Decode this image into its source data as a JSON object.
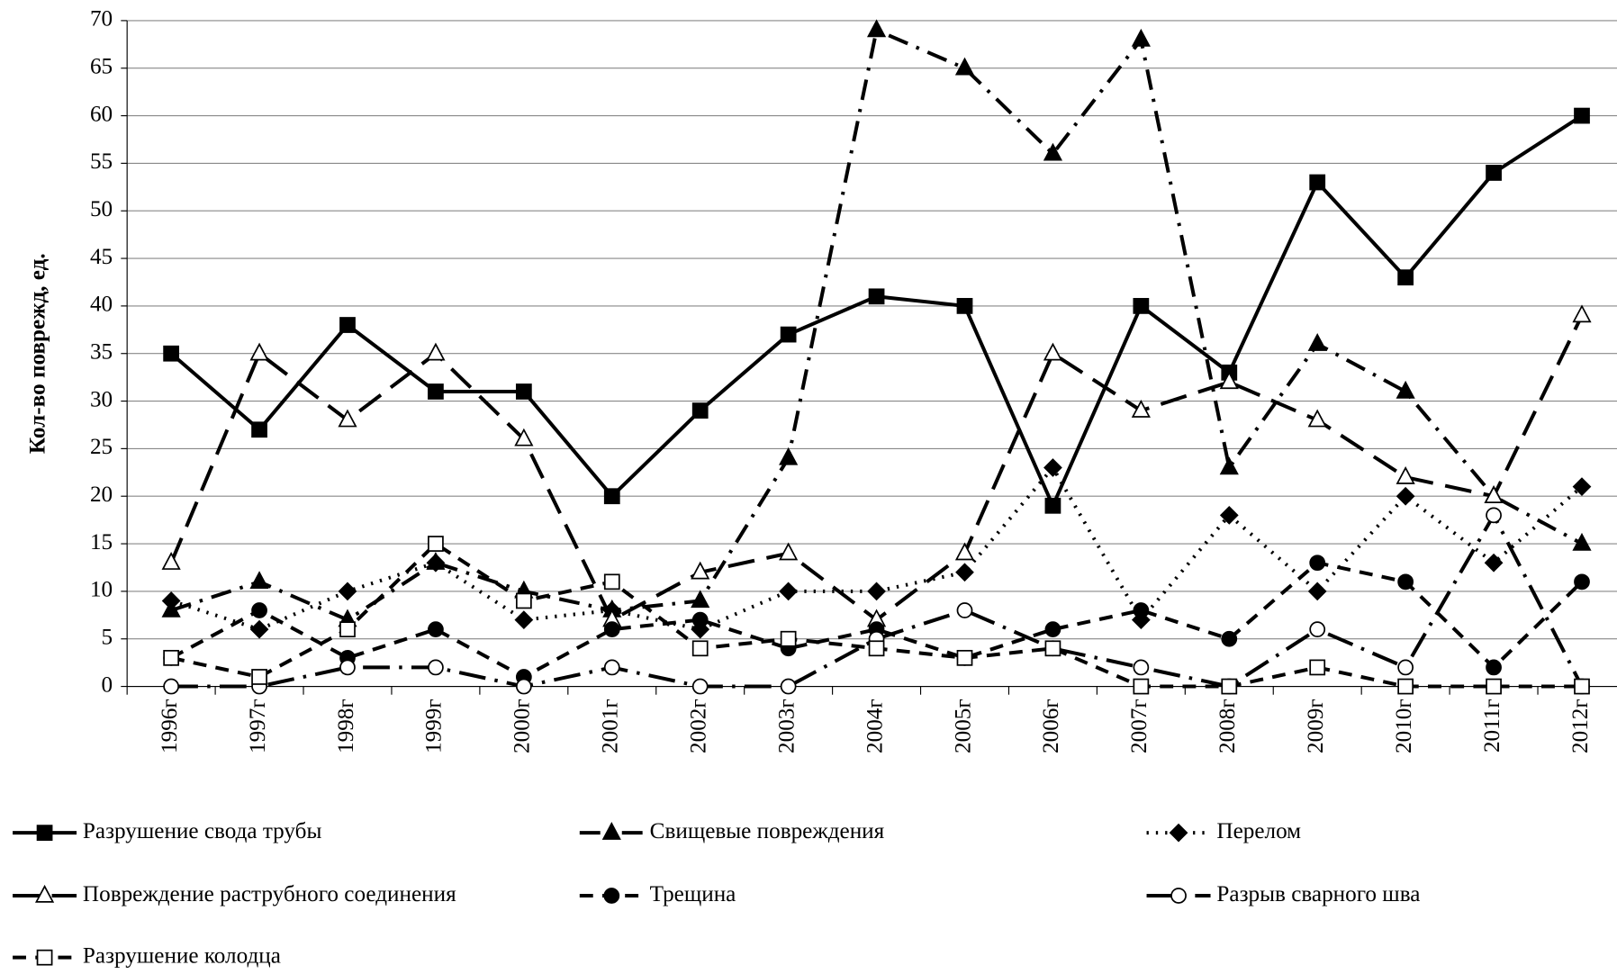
{
  "chart_data": {
    "type": "line",
    "y_label": "Кол-во поврежд, ед.",
    "categories": [
      "1996г",
      "1997г",
      "1998г",
      "1999г",
      "2000г",
      "2001г",
      "2002г",
      "2003г",
      "2004г",
      "2005г",
      "2006г",
      "2007г",
      "2008г",
      "2009г",
      "2010г",
      "2011г",
      "2012г"
    ],
    "ylim": [
      0,
      70
    ],
    "yticks": [
      0,
      5,
      10,
      15,
      20,
      25,
      30,
      35,
      40,
      45,
      50,
      55,
      60,
      65,
      70
    ],
    "grid": true,
    "legend": "bottom",
    "series": [
      {
        "name": "Разрушение свода трубы",
        "color": "#000000",
        "linestyle": "solid",
        "marker": "square",
        "filled": true,
        "values": [
          35,
          27,
          38,
          31,
          31,
          20,
          29,
          37,
          41,
          40,
          19,
          40,
          33,
          53,
          43,
          54,
          60
        ]
      },
      {
        "name": "Свищевые повреждения",
        "color": "#000000",
        "linestyle": "dashdot",
        "marker": "triangle",
        "filled": true,
        "values": [
          8,
          11,
          7,
          13,
          10,
          8,
          9,
          24,
          69,
          65,
          56,
          68,
          23,
          36,
          31,
          20,
          15
        ]
      },
      {
        "name": "Перелом",
        "color": "#000000",
        "linestyle": "dot",
        "marker": "diamond",
        "filled": true,
        "values": [
          9,
          6,
          10,
          13,
          7,
          8,
          6,
          10,
          10,
          12,
          23,
          7,
          18,
          10,
          20,
          13,
          21
        ]
      },
      {
        "name": "Повреждение раструбного соединения",
        "color": "#000000",
        "linestyle": "longdash",
        "marker": "triangle",
        "filled": false,
        "values": [
          13,
          35,
          28,
          35,
          26,
          7,
          12,
          14,
          7,
          14,
          35,
          29,
          32,
          28,
          22,
          20,
          39
        ]
      },
      {
        "name": "Трещина",
        "color": "#000000",
        "linestyle": "dash",
        "marker": "circle",
        "filled": true,
        "values": [
          3,
          8,
          3,
          6,
          1,
          6,
          7,
          4,
          6,
          3,
          6,
          8,
          5,
          13,
          11,
          2,
          11
        ]
      },
      {
        "name": "Разрыв сварного шва",
        "color": "#000000",
        "linestyle": "longdashdot",
        "marker": "circle",
        "filled": false,
        "values": [
          0,
          0,
          2,
          2,
          0,
          2,
          0,
          0,
          5,
          8,
          4,
          2,
          0,
          6,
          2,
          18,
          0
        ]
      },
      {
        "name": "Разрушение колодца",
        "color": "#000000",
        "linestyle": "dash",
        "marker": "square",
        "filled": false,
        "values": [
          3,
          1,
          6,
          15,
          9,
          11,
          4,
          5,
          4,
          3,
          4,
          0,
          0,
          2,
          0,
          0,
          0
        ]
      }
    ]
  }
}
